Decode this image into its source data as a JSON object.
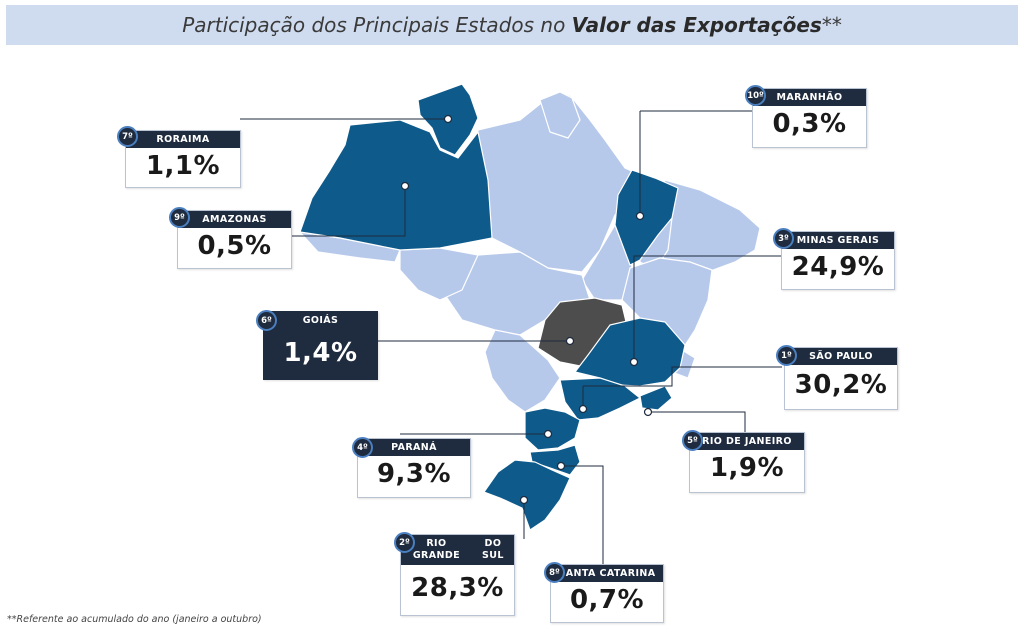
{
  "title": {
    "prefix": "Participação dos Principais Estados no ",
    "emphasis": "Valor das Exportações",
    "suffix": "**"
  },
  "colors": {
    "highlight_state": "#0e5a8a",
    "other_states": "#b7c9ea",
    "goias": "#4d4d4d",
    "card_header": "#1f2b3e"
  },
  "states": [
    {
      "id": "sp",
      "rank": "1º",
      "name": "SÃO PAULO",
      "value": "30,2%"
    },
    {
      "id": "rs",
      "rank": "2º",
      "name": "RIO GRANDE DO SUL",
      "name_line1": "RIO GRANDE",
      "name_line2": "DO SUL",
      "value": "28,3%"
    },
    {
      "id": "mg",
      "rank": "3º",
      "name": "MINAS GERAIS",
      "value": "24,9%"
    },
    {
      "id": "pr",
      "rank": "4º",
      "name": "PARANÁ",
      "value": "9,3%"
    },
    {
      "id": "rj",
      "rank": "5º",
      "name": "RIO DE JANEIRO",
      "value": "1,9%"
    },
    {
      "id": "go",
      "rank": "6º",
      "name": "GOIÁS",
      "value": "1,4%"
    },
    {
      "id": "rr",
      "rank": "7º",
      "name": "RORAIMA",
      "value": "1,1%"
    },
    {
      "id": "sc",
      "rank": "8º",
      "name": "SANTA CATARINA",
      "value": "0,7%"
    },
    {
      "id": "am",
      "rank": "9º",
      "name": "AMAZONAS",
      "value": "0,5%"
    },
    {
      "id": "ma",
      "rank": "10º",
      "name": "MARANHÃO",
      "value": "0,3%"
    }
  ],
  "footnote": "**Referente ao acumulado do ano (janeiro a outubro)"
}
